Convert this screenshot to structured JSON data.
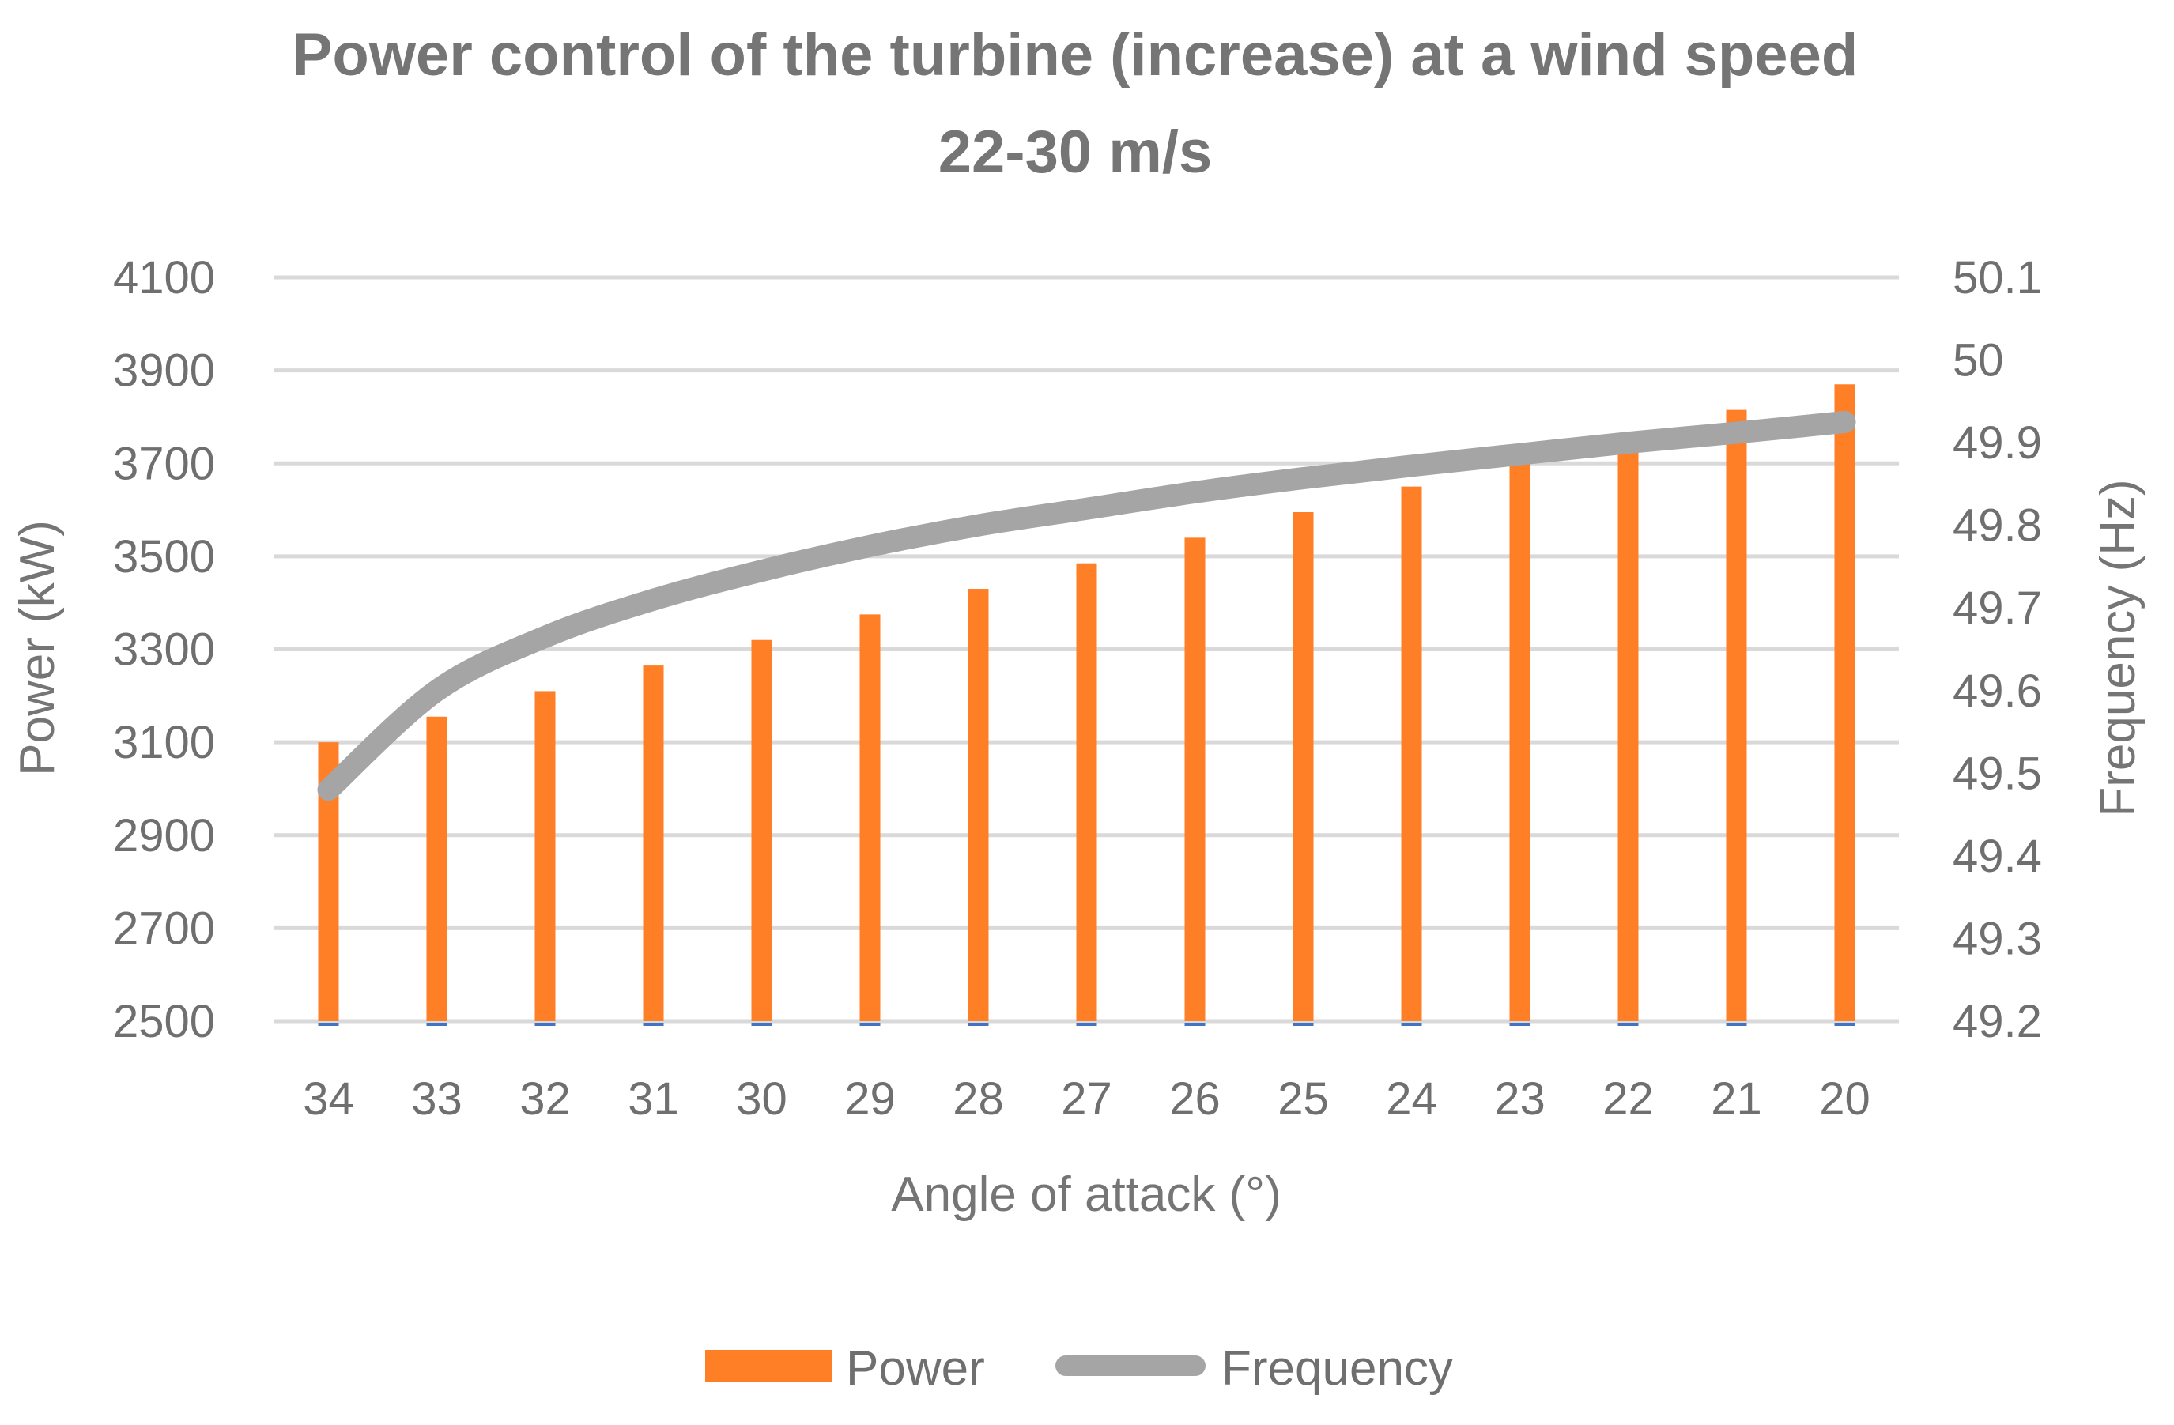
{
  "chart_data": {
    "type": "bar",
    "title_lines": [
      "Power control of the turbine (increase) at a wind speed",
      "22-30 m/s"
    ],
    "xlabel": "Angle of attack (°)",
    "ylabel": "Power (kW)",
    "y2label": "Frequency (Hz)",
    "categories": [
      "34",
      "33",
      "32",
      "31",
      "30",
      "29",
      "28",
      "27",
      "26",
      "25",
      "24",
      "23",
      "22",
      "21",
      "20"
    ],
    "ylim": [
      2500,
      4100
    ],
    "yticks": [
      2500,
      2700,
      2900,
      3100,
      3300,
      3500,
      3700,
      3900,
      4100
    ],
    "y2lim": [
      49.2,
      50.1
    ],
    "y2ticks": [
      "49.2",
      "49.3",
      "49.4",
      "49.5",
      "49.6",
      "49.7",
      "49.8",
      "49.9",
      "50",
      "50.1"
    ],
    "grid": true,
    "legend_position": "bottom",
    "series": [
      {
        "name": "Power",
        "type": "bar",
        "axis": "left",
        "color": "#FF7F27",
        "values": [
          3100,
          3155,
          3210,
          3265,
          3320,
          3375,
          3430,
          3485,
          3540,
          3595,
          3650,
          3710,
          3765,
          3815,
          3870
        ]
      },
      {
        "name": "Frequency",
        "type": "line",
        "axis": "right",
        "color": "#A5A5A5",
        "values": [
          49.48,
          49.6,
          49.665,
          49.71,
          49.745,
          49.775,
          49.8,
          49.82,
          49.84,
          49.857,
          49.872,
          49.886,
          49.9,
          49.912,
          49.925
        ]
      }
    ]
  },
  "colors": {
    "grid": "#d9d9d9",
    "text": "#6f6f6f",
    "baseline_mark": "#4472C4"
  }
}
